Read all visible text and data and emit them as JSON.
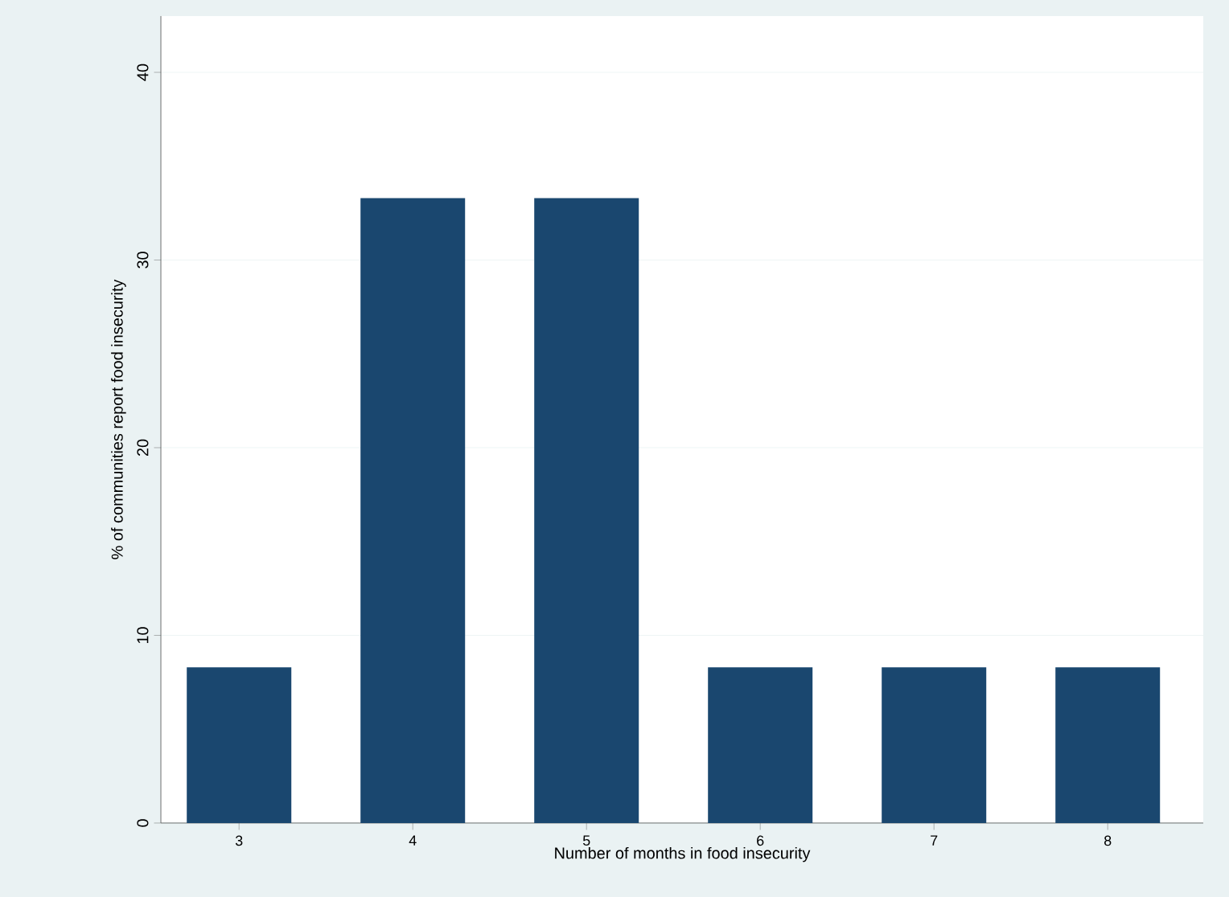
{
  "chart_data": {
    "type": "bar",
    "xlabel": "Number of months in food insecurity",
    "ylabel": "% of communities report food insecurity",
    "categories": [
      "3",
      "4",
      "5",
      "6",
      "7",
      "8"
    ],
    "values": [
      8.3,
      33.3,
      33.3,
      8.3,
      8.3,
      8.3
    ],
    "color": "#1a476f",
    "ylim": [
      0,
      43
    ],
    "yticks": [
      0,
      10,
      20,
      30,
      40
    ],
    "grid": "y"
  }
}
